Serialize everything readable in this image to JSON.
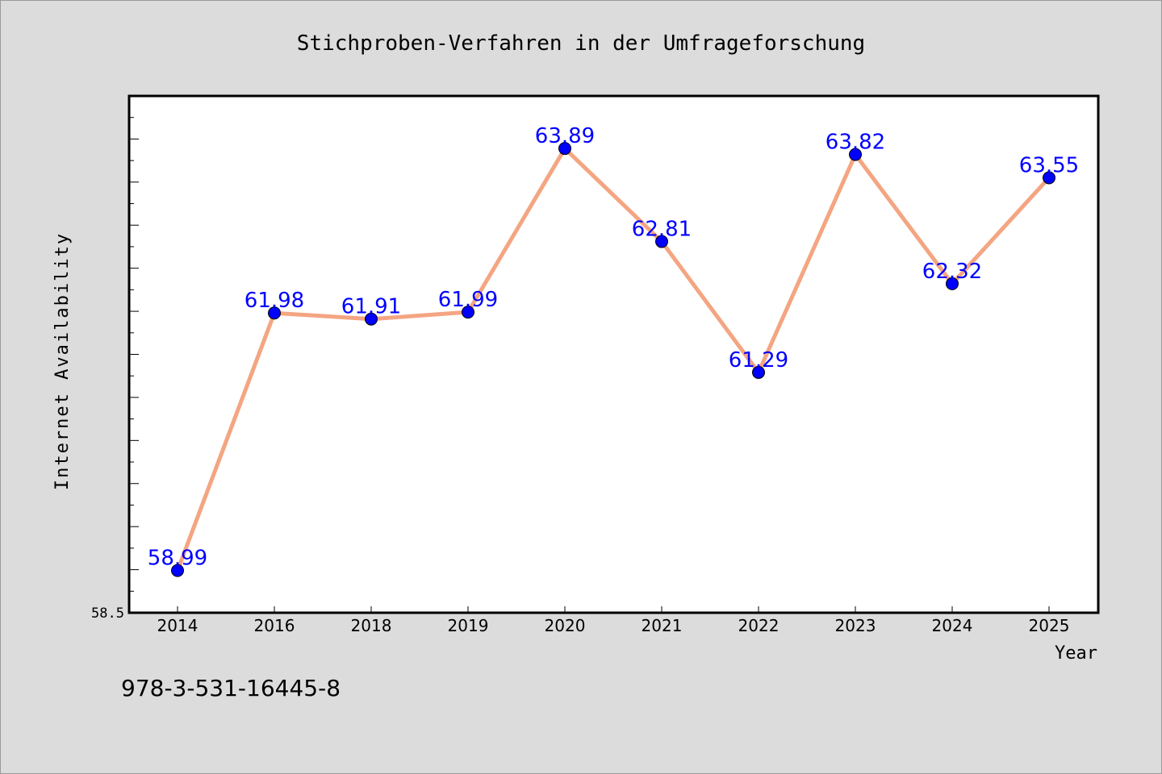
{
  "chart_data": {
    "type": "line",
    "title": "Stichproben-Verfahren in der Umfrageforschung",
    "xlabel": "Year",
    "ylabel": "Internet Availability",
    "categories": [
      "2014",
      "2016",
      "2018",
      "2019",
      "2020",
      "2021",
      "2022",
      "2023",
      "2024",
      "2025"
    ],
    "series": [
      {
        "values": [
          58.99,
          61.98,
          61.91,
          61.99,
          63.89,
          62.81,
          61.29,
          63.82,
          62.32,
          63.55
        ],
        "labels": [
          "58.99",
          "61.98",
          "61.91",
          "61.99",
          "63.89",
          "62.81",
          "61.29",
          "63.82",
          "62.32",
          "63.55"
        ]
      }
    ],
    "ylim": [
      58.5,
      64.5
    ],
    "y_tick_labels": [
      "58.5"
    ],
    "grid": false,
    "colors": {
      "line": "#f4a582",
      "marker": "#0000ff",
      "data_label": "#0000ff",
      "plot_background": "#ffffff",
      "figure_background": "#dcdcdc"
    }
  },
  "footer": {
    "isbn": "978-3-531-16445-8"
  }
}
